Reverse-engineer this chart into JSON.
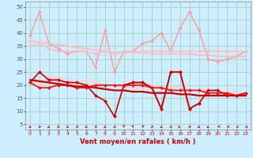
{
  "bg_color": "#cceeff",
  "grid_color": "#aaccbb",
  "x_labels": [
    "0",
    "1",
    "2",
    "3",
    "4",
    "5",
    "6",
    "7",
    "8",
    "9",
    "10",
    "11",
    "12",
    "13",
    "14",
    "15",
    "16",
    "17",
    "18",
    "19",
    "20",
    "21",
    "22",
    "23"
  ],
  "xlabel": "Vent moyen/en rafales ( km/h )",
  "xlabel_color": "#cc0000",
  "yticks": [
    5,
    10,
    15,
    20,
    25,
    30,
    35,
    40,
    45,
    50
  ],
  "ylim": [
    3,
    52
  ],
  "xlim": [
    -0.5,
    23.5
  ],
  "series": [
    {
      "label": "rafales_light1",
      "color": "#ff9999",
      "lw": 1.0,
      "marker": "D",
      "ms": 2.0,
      "data": [
        39,
        48,
        36,
        34,
        32,
        33,
        33,
        27,
        41,
        25,
        33,
        33,
        36,
        37,
        40,
        33,
        42,
        48,
        41,
        30,
        29,
        30,
        31,
        33
      ]
    },
    {
      "label": "rafales_light2",
      "color": "#ffbbbb",
      "lw": 1.0,
      "marker": "D",
      "ms": 2.0,
      "data": [
        35,
        36,
        34,
        33,
        33,
        33,
        33,
        32,
        33,
        32,
        33,
        33,
        33,
        33,
        33,
        33,
        33,
        33,
        33,
        33,
        33,
        33,
        33,
        33
      ]
    },
    {
      "label": "trend_rafales",
      "color": "#ffbbbb",
      "lw": 1.2,
      "marker": null,
      "ms": 0,
      "data": [
        37,
        36.5,
        36,
        35.5,
        35,
        34.5,
        34,
        33.5,
        33,
        32.5,
        32.5,
        32.5,
        32.5,
        32,
        32,
        32,
        32,
        32,
        31.5,
        31.5,
        31,
        31,
        31,
        31
      ]
    },
    {
      "label": "vent_moyen_light",
      "color": "#ffcccc",
      "lw": 1.0,
      "marker": "D",
      "ms": 2.0,
      "data": [
        22,
        20,
        23,
        23,
        22,
        21,
        22,
        21,
        20,
        20,
        20,
        21,
        20,
        20,
        19,
        19,
        19,
        18,
        18,
        18,
        17,
        17,
        16,
        17
      ]
    },
    {
      "label": "trend_vent",
      "color": "#ffcccc",
      "lw": 1.2,
      "marker": null,
      "ms": 0,
      "data": [
        22,
        22,
        21.5,
        21,
        21,
        20.5,
        20.5,
        20,
        20,
        19.5,
        19.5,
        19,
        19,
        19,
        18.5,
        18.5,
        18,
        18,
        18,
        18,
        17.5,
        17.5,
        17,
        17
      ]
    },
    {
      "label": "rafales_dark",
      "color": "#dd2222",
      "lw": 1.2,
      "marker": "D",
      "ms": 2.0,
      "data": [
        null,
        null,
        null,
        null,
        null,
        null,
        null,
        null,
        null,
        null,
        20,
        21,
        21,
        19,
        11,
        25,
        25,
        11,
        13,
        null,
        null,
        null,
        null,
        null
      ]
    },
    {
      "label": "vent_dark1",
      "color": "#cc0000",
      "lw": 1.2,
      "marker": "D",
      "ms": 2.0,
      "data": [
        21,
        25,
        22,
        22,
        21,
        21,
        20,
        16,
        14,
        8,
        20,
        21,
        21,
        19,
        11,
        25,
        25,
        11,
        13,
        18,
        18,
        16,
        16,
        17
      ]
    },
    {
      "label": "vent_dark2",
      "color": "#ee1111",
      "lw": 1.2,
      "marker": "D",
      "ms": 2.0,
      "data": [
        21,
        19,
        19,
        20,
        20,
        19,
        19,
        20,
        20,
        20,
        20,
        20,
        20,
        19,
        19,
        18,
        18,
        18,
        18,
        17,
        17,
        17,
        16,
        17
      ]
    },
    {
      "label": "trend_dark",
      "color": "#cc0000",
      "lw": 1.6,
      "marker": null,
      "ms": 0,
      "data": [
        22,
        21.5,
        21,
        20.5,
        20,
        19.5,
        19.5,
        19,
        18.5,
        18,
        18,
        17.5,
        17.5,
        17,
        17,
        17,
        16.5,
        16.5,
        16,
        16,
        16,
        16,
        16,
        16
      ]
    }
  ],
  "arrow_color": "#cc0000",
  "arrow_angles": [
    210,
    200,
    210,
    200,
    210,
    200,
    210,
    200,
    210,
    200,
    180,
    170,
    190,
    200,
    210,
    200,
    90,
    200,
    210,
    220,
    230,
    240,
    260,
    270
  ]
}
